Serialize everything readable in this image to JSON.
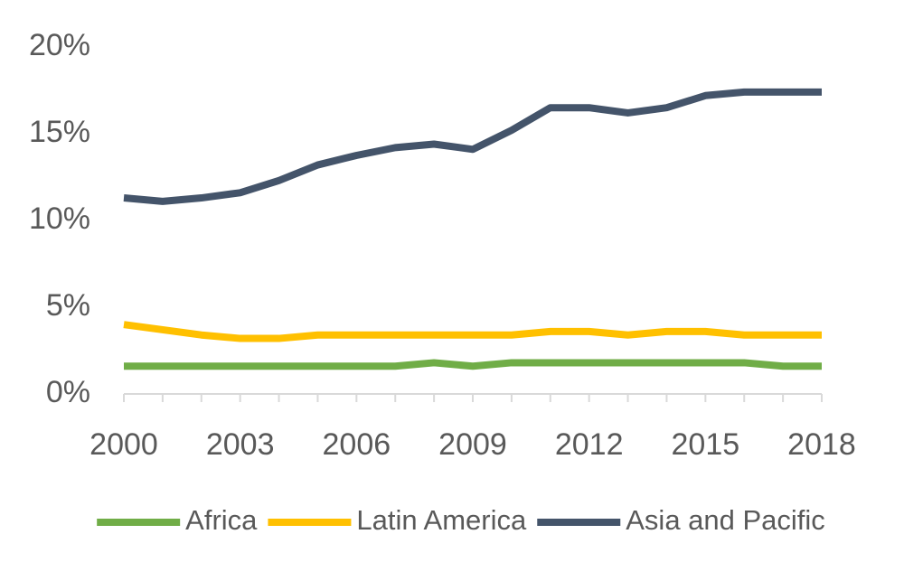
{
  "chart_data": {
    "type": "line",
    "x": [
      2000,
      2001,
      2002,
      2003,
      2004,
      2005,
      2006,
      2007,
      2008,
      2009,
      2010,
      2011,
      2012,
      2013,
      2014,
      2015,
      2016,
      2017,
      2018
    ],
    "xlim": [
      2000,
      2018
    ],
    "xticks": [
      2000,
      2003,
      2006,
      2009,
      2012,
      2015,
      2018
    ],
    "ylim": [
      0,
      20
    ],
    "yticks": [
      {
        "value": 0,
        "label": "0%"
      },
      {
        "value": 5,
        "label": "5%"
      },
      {
        "value": 10,
        "label": "10%"
      },
      {
        "value": 15,
        "label": "15%"
      },
      {
        "value": 20,
        "label": "20%"
      }
    ],
    "grid": false,
    "legend": "bottom",
    "series": [
      {
        "name": "Africa",
        "color": "#70ad47",
        "values": [
          1.6,
          1.6,
          1.6,
          1.6,
          1.6,
          1.6,
          1.6,
          1.6,
          1.8,
          1.6,
          1.8,
          1.8,
          1.8,
          1.8,
          1.8,
          1.8,
          1.8,
          1.6,
          1.6
        ]
      },
      {
        "name": "Latin America",
        "color": "#ffc000",
        "values": [
          4.0,
          3.7,
          3.4,
          3.2,
          3.2,
          3.4,
          3.4,
          3.4,
          3.4,
          3.4,
          3.4,
          3.6,
          3.6,
          3.4,
          3.6,
          3.6,
          3.4,
          3.4,
          3.4
        ]
      },
      {
        "name": "Asia and Pacific",
        "color": "#44546a",
        "values": [
          11.3,
          11.1,
          11.3,
          11.6,
          12.3,
          13.2,
          13.75,
          14.2,
          14.4,
          14.1,
          15.2,
          16.5,
          16.5,
          16.2,
          16.5,
          17.2,
          17.4,
          17.4,
          17.4
        ]
      }
    ]
  }
}
